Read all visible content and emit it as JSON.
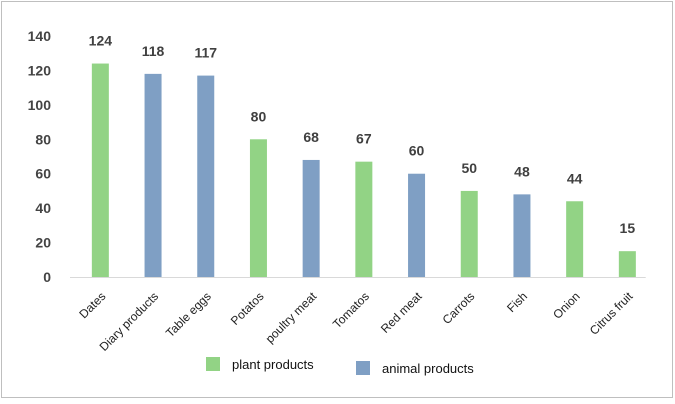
{
  "chart_data": {
    "type": "bar",
    "categories": [
      "Dates",
      "Diary products",
      "Table eggs",
      "Potatos",
      "poultry meat",
      "Tomatos",
      "Red meat",
      "Carrots",
      "Fish",
      "Onion",
      "Citrus fruit"
    ],
    "values": [
      124,
      118,
      117,
      80,
      68,
      67,
      60,
      50,
      48,
      44,
      15
    ],
    "groups": [
      "plant",
      "animal",
      "animal",
      "plant",
      "animal",
      "plant",
      "animal",
      "plant",
      "animal",
      "plant",
      "plant"
    ],
    "data_labels": [
      "124",
      "118",
      "117",
      "80",
      "68",
      "67",
      "60",
      "50",
      "48",
      "44",
      "15"
    ],
    "ylim": [
      0,
      140
    ],
    "yticks": [
      0,
      20,
      40,
      60,
      80,
      100,
      120,
      140
    ],
    "grid": false,
    "legend_position": "bottom",
    "legend": [
      {
        "key": "plant",
        "label": "plant products",
        "color": "#92D385"
      },
      {
        "key": "animal",
        "label": "animal products",
        "color": "#7F9FC4"
      }
    ]
  }
}
